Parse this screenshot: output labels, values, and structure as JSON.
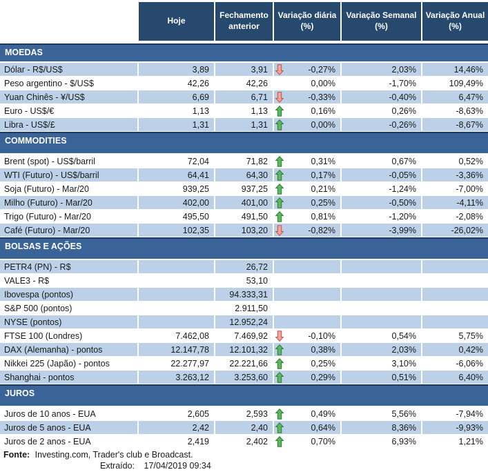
{
  "header": {
    "columns": [
      "Hoje",
      "Fechamento anterior",
      "Variação diária (%)",
      "Variação Semanal (%)",
      "Variação Anual (%)"
    ]
  },
  "sections": [
    {
      "title": "MOEDAS",
      "rows": [
        {
          "label": "Dólar - R$/US$",
          "hoje": "3,89",
          "fechamento": "3,91",
          "arrow": "down",
          "diaria": "-0,27%",
          "semanal": "2,03%",
          "anual": "14,46%"
        },
        {
          "label": "Peso argentino - $/US$",
          "hoje": "42,26",
          "fechamento": "42,26",
          "arrow": "",
          "diaria": "0,00%",
          "semanal": "-1,70%",
          "anual": "109,49%"
        },
        {
          "label": "Yuan Chinês - ¥/US$",
          "hoje": "6,69",
          "fechamento": "6,71",
          "arrow": "down",
          "diaria": "-0,33%",
          "semanal": "-0,40%",
          "anual": "6,47%"
        },
        {
          "label": "Euro - US$/€",
          "hoje": "1,13",
          "fechamento": "1,13",
          "arrow": "up",
          "diaria": "0,16%",
          "semanal": "0,26%",
          "anual": "-8,63%"
        },
        {
          "label": "Libra - US$/£",
          "hoje": "1,31",
          "fechamento": "1,31",
          "arrow": "up",
          "diaria": "0,00%",
          "semanal": "-0,26%",
          "anual": "-8,67%"
        }
      ]
    },
    {
      "title": "COMMODITIES",
      "rows": [
        {
          "label": "Brent (spot) - US$/barril",
          "hoje": "72,04",
          "fechamento": "71,82",
          "arrow": "up",
          "diaria": "0,31%",
          "semanal": "0,67%",
          "anual": "0,52%"
        },
        {
          "label": "WTI (Futuro) - US$/barril",
          "hoje": "64,41",
          "fechamento": "64,30",
          "arrow": "up",
          "diaria": "0,17%",
          "semanal": "-0,05%",
          "anual": "-3,36%"
        },
        {
          "label": "Soja (Futuro) - Mar/20",
          "hoje": "939,25",
          "fechamento": "937,25",
          "arrow": "up",
          "diaria": "0,21%",
          "semanal": "-1,24%",
          "anual": "-7,00%"
        },
        {
          "label": "Milho (Futuro) - Mar/20",
          "hoje": "402,00",
          "fechamento": "401,00",
          "arrow": "up",
          "diaria": "0,25%",
          "semanal": "-0,50%",
          "anual": "-4,11%"
        },
        {
          "label": "Trigo (Futuro) - Mar/20",
          "hoje": "495,50",
          "fechamento": "491,50",
          "arrow": "up",
          "diaria": "0,81%",
          "semanal": "-1,20%",
          "anual": "-2,08%"
        },
        {
          "label": "Café (Futuro) - Mar/20",
          "hoje": "102,35",
          "fechamento": "103,20",
          "arrow": "down",
          "diaria": "-0,82%",
          "semanal": "-3,99%",
          "anual": "-26,02%"
        }
      ]
    },
    {
      "title": "BOLSAS E AÇÕES",
      "rows": [
        {
          "label": "PETR4 (PN) - R$",
          "hoje": "",
          "fechamento": "26,72",
          "arrow": "",
          "diaria": "",
          "semanal": "",
          "anual": ""
        },
        {
          "label": "VALE3 - R$",
          "hoje": "",
          "fechamento": "53,10",
          "arrow": "",
          "diaria": "",
          "semanal": "",
          "anual": ""
        },
        {
          "label": "Ibovespa (pontos)",
          "hoje": "",
          "fechamento": "94.333,31",
          "arrow": "",
          "diaria": "",
          "semanal": "",
          "anual": ""
        },
        {
          "label": "S&P 500 (pontos)",
          "hoje": "",
          "fechamento": "2.911,50",
          "arrow": "",
          "diaria": "",
          "semanal": "",
          "anual": ""
        },
        {
          "label": "NYSE (pontos)",
          "hoje": "",
          "fechamento": "12.952,24",
          "arrow": "",
          "diaria": "",
          "semanal": "",
          "anual": ""
        },
        {
          "label": "FTSE 100 (Londres)",
          "hoje": "7.462,08",
          "fechamento": "7.469,92",
          "arrow": "down",
          "diaria": "-0,10%",
          "semanal": "0,54%",
          "anual": "5,75%"
        },
        {
          "label": "DAX (Alemanha) - pontos",
          "hoje": "12.147,78",
          "fechamento": "12.101,32",
          "arrow": "up",
          "diaria": "0,38%",
          "semanal": "2,03%",
          "anual": "0,42%"
        },
        {
          "label": "Nikkei 225 (Japão) - pontos",
          "hoje": "22.277,97",
          "fechamento": "22.221,66",
          "arrow": "up",
          "diaria": "0,25%",
          "semanal": "3,10%",
          "anual": "-6,06%"
        },
        {
          "label": "Shanghai - pontos",
          "hoje": "3.263,12",
          "fechamento": "3.253,60",
          "arrow": "up",
          "diaria": "0,29%",
          "semanal": "0,51%",
          "anual": "6,40%"
        }
      ]
    },
    {
      "title": "JUROS",
      "rows": [
        {
          "label": "Juros de 10 anos - EUA",
          "hoje": "2,605",
          "fechamento": "2,593",
          "arrow": "up",
          "diaria": "0,49%",
          "semanal": "5,56%",
          "anual": "-7,94%"
        },
        {
          "label": "Juros de 5 anos - EUA",
          "hoje": "2,42",
          "fechamento": "2,40",
          "arrow": "up",
          "diaria": "0,64%",
          "semanal": "8,36%",
          "anual": "-9,93%"
        },
        {
          "label": "Juros de 2 anos - EUA",
          "hoje": "2,419",
          "fechamento": "2,402",
          "arrow": "up",
          "diaria": "0,70%",
          "semanal": "6,93%",
          "anual": "1,21%"
        }
      ]
    }
  ],
  "footer": {
    "fonte_label": "Fonte:",
    "fonte_text": "Investing.com, Trader's club e Broadcast.",
    "extraido_label": "Extraído:",
    "extraido_value": "17/04/2019 09:34"
  },
  "colors": {
    "header_bg": "#27496D",
    "section_bg": "#3A6397",
    "section_border": "#1F3864",
    "stripe": "#BCD1E7",
    "arrow_up_fill": "#5CB85C",
    "arrow_up_stroke": "#2D7A35",
    "arrow_down_fill": "#F2A59B",
    "arrow_down_stroke": "#C0504D"
  }
}
